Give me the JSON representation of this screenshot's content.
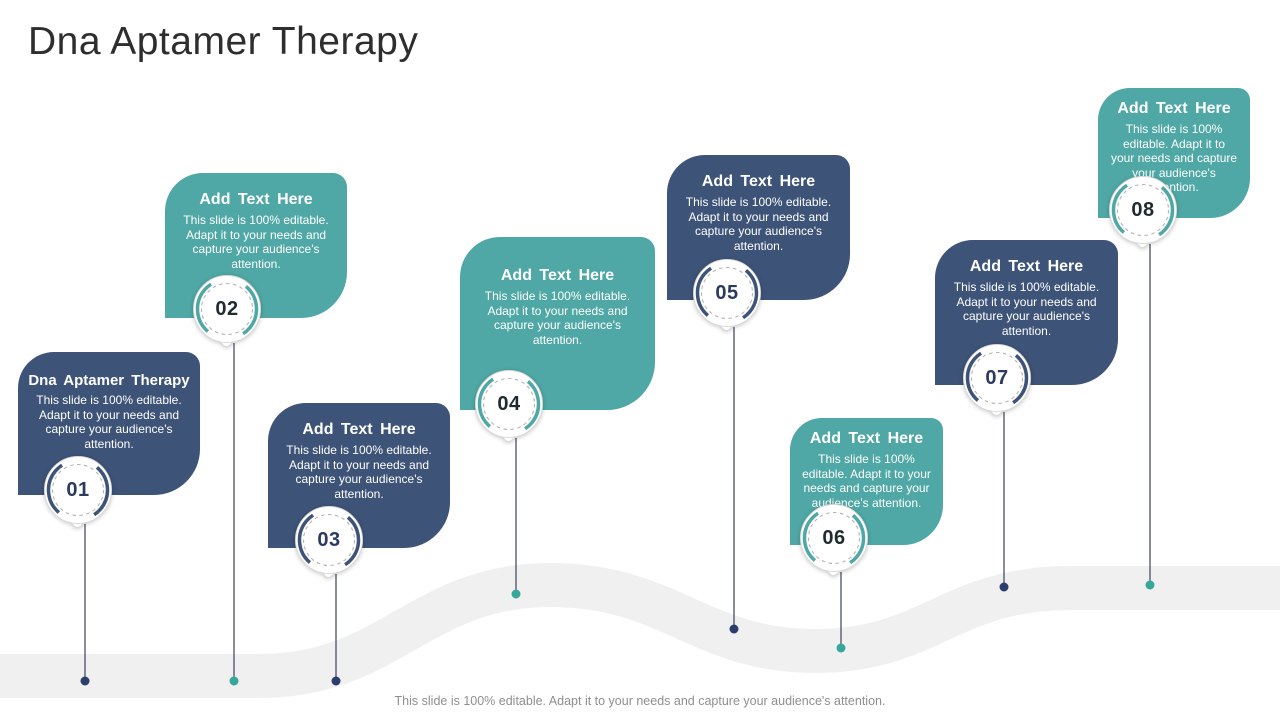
{
  "slide": {
    "title": "Dna Aptamer Therapy",
    "footer_caption": "This slide is 100% editable. Adapt it to your needs and capture your audience's attention."
  },
  "colors": {
    "navy": "#3D5377",
    "teal": "#4FA8A5",
    "navy_dot": "#2C3E6B",
    "teal_dot": "#35A79B",
    "navy_number": "#2B3A5F",
    "teal_number": "#1F2B2E",
    "road": "#F0F0F0",
    "stem": "#4A5063",
    "badge_ring": "#D9D9D9",
    "badge_dashes": "#B3B3B3",
    "title_color": "#2E2E2E",
    "caption_color": "#8F8F8F"
  },
  "cards": [
    {
      "number": "01",
      "theme": "navy",
      "title": "Dna Aptamer Therapy",
      "body": "This slide is 100% editable. Adapt it to your needs and capture your audience's attention."
    },
    {
      "number": "02",
      "theme": "teal",
      "title": "Add Text Here",
      "body": "This slide is 100% editable. Adapt it to your needs and capture your audience's attention."
    },
    {
      "number": "03",
      "theme": "navy",
      "title": "Add Text Here",
      "body": "This slide is 100% editable. Adapt it to your needs and capture your audience's attention."
    },
    {
      "number": "04",
      "theme": "teal",
      "title": "Add Text Here",
      "body": "This slide is 100% editable. Adapt it to your needs and capture your audience's attention."
    },
    {
      "number": "05",
      "theme": "navy",
      "title": "Add Text Here",
      "body": "This slide is 100% editable. Adapt it to your needs and capture your audience's attention."
    },
    {
      "number": "06",
      "theme": "teal",
      "title": "Add Text Here",
      "body": "This slide is 100% editable. Adapt it to your needs and capture your audience's attention."
    },
    {
      "number": "07",
      "theme": "navy",
      "title": "Add Text Here",
      "body": "This slide is 100% editable. Adapt it to your needs and capture your audience's attention."
    },
    {
      "number": "08",
      "theme": "teal",
      "title": "Add Text Here",
      "body": "This slide is 100% editable. Adapt it to your needs and capture your audience's attention."
    }
  ]
}
